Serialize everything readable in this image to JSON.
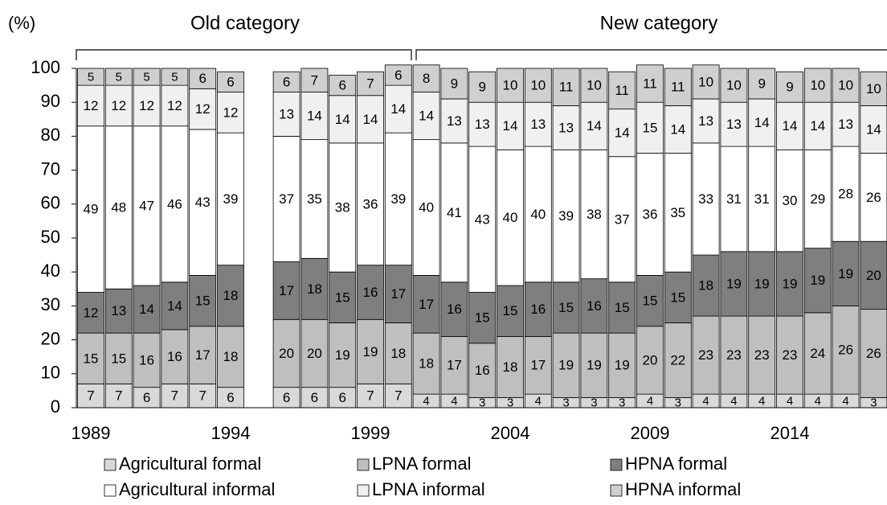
{
  "chart_data": {
    "type": "stacked_bar",
    "y_label": "(%)",
    "annotations": [
      "Old category",
      "New category"
    ],
    "categories": [
      "1989",
      null,
      null,
      null,
      null,
      "1994",
      null,
      null,
      null,
      null,
      "1999",
      null,
      null,
      null,
      null,
      "2004",
      null,
      null,
      null,
      null,
      "2009",
      null,
      null,
      null,
      null,
      "2014",
      null,
      null,
      null
    ],
    "series": [
      {
        "name": "Agricultural formal",
        "color": "#d9d9d9",
        "values": [
          7,
          7,
          6,
          7,
          7,
          6,
          null,
          6,
          6,
          6,
          7,
          7,
          4,
          4,
          3,
          3,
          4,
          3,
          3,
          3,
          4,
          3,
          4,
          4,
          4,
          4,
          4,
          4,
          3
        ]
      },
      {
        "name": "LPNA formal",
        "color": "#bfbfbf",
        "values": [
          15,
          15,
          16,
          16,
          17,
          18,
          null,
          20,
          20,
          19,
          19,
          18,
          18,
          17,
          16,
          18,
          17,
          19,
          19,
          19,
          20,
          22,
          23,
          23,
          23,
          23,
          24,
          26,
          26
        ]
      },
      {
        "name": "HPNA formal",
        "color": "#7f7f7f",
        "values": [
          12,
          13,
          14,
          14,
          15,
          18,
          null,
          17,
          18,
          15,
          16,
          17,
          17,
          16,
          15,
          15,
          16,
          15,
          16,
          15,
          15,
          15,
          18,
          19,
          19,
          19,
          19,
          19,
          20
        ]
      },
      {
        "name": "Agricultural informal",
        "color": "#ffffff",
        "values": [
          49,
          48,
          47,
          46,
          43,
          39,
          null,
          37,
          35,
          38,
          36,
          39,
          40,
          41,
          43,
          40,
          40,
          39,
          38,
          37,
          36,
          35,
          33,
          31,
          31,
          30,
          29,
          28,
          26
        ]
      },
      {
        "name": "LPNA informal",
        "color": "#f0f0f0",
        "values": [
          12,
          12,
          12,
          12,
          12,
          12,
          null,
          13,
          14,
          14,
          14,
          14,
          14,
          13,
          13,
          14,
          13,
          13,
          14,
          14,
          15,
          14,
          13,
          13,
          14,
          14,
          14,
          13,
          14
        ]
      },
      {
        "name": "HPNA informal",
        "color": "#cfcfcf",
        "values": [
          5,
          5,
          5,
          5,
          6,
          6,
          null,
          6,
          7,
          6,
          7,
          6,
          8,
          9,
          9,
          10,
          10,
          11,
          10,
          11,
          11,
          11,
          10,
          10,
          9,
          9,
          10,
          10,
          10
        ]
      }
    ],
    "ylim": [
      0,
      100
    ],
    "yticks": [
      0,
      10,
      20,
      30,
      40,
      50,
      60,
      70,
      80,
      90,
      100
    ]
  }
}
